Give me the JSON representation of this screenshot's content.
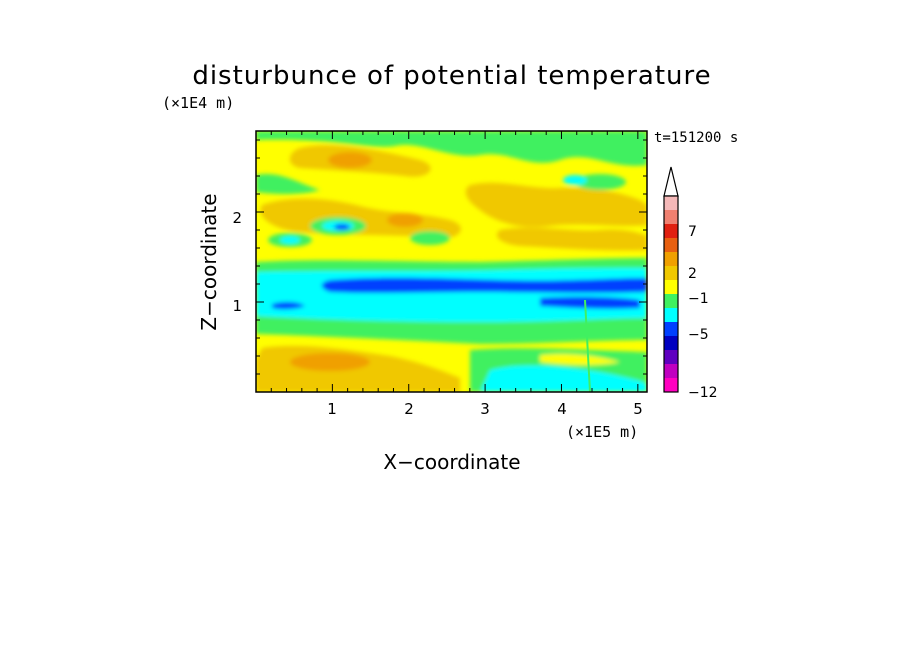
{
  "chart_data": {
    "type": "heatmap",
    "title": "disturbunce of potential temperature",
    "xlabel": "X−coordinate",
    "ylabel": "Z−coordinate",
    "x_unit": "(×1E5 m)",
    "y_unit": "(×1E4 m)",
    "time_label": "t=151200 s",
    "xlim": [
      0,
      5.12
    ],
    "ylim": [
      0,
      2.9
    ],
    "x_ticks": [
      1,
      2,
      3,
      4,
      5
    ],
    "y_ticks": [
      1,
      2
    ],
    "x_tick_labels": [
      "1",
      "2",
      "3",
      "4",
      "5"
    ],
    "y_tick_labels": [
      "1",
      "2"
    ],
    "colorbar": {
      "tick_labels": [
        "7",
        "2",
        "−1",
        "−5",
        "−12"
      ],
      "colors_top_to_bottom": [
        "#f4b8b8",
        "#f08070",
        "#e02010",
        "#e86010",
        "#f0a000",
        "#f0c800",
        "#ffff00",
        "#40f060",
        "#00ffff",
        "#0040ff",
        "#0000c0",
        "#6000c0",
        "#c000c0",
        "#ff00c0"
      ],
      "extend_top_color": "#ffffff"
    }
  }
}
